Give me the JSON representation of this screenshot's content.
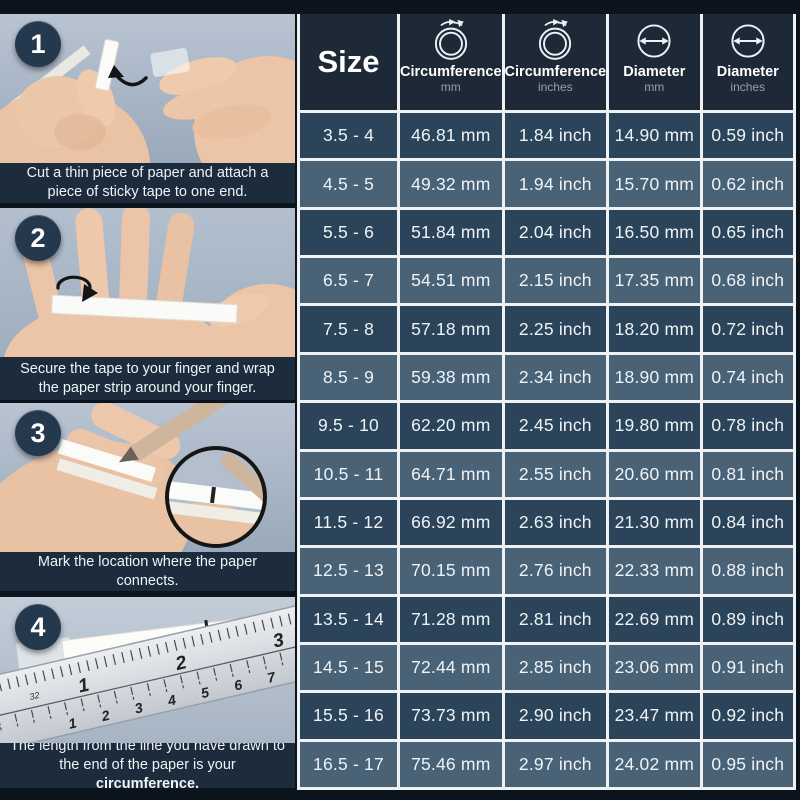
{
  "steps": [
    {
      "number": "1",
      "caption": "Cut a thin piece of paper and attach a piece of sticky tape to one end.",
      "caption_bold": ""
    },
    {
      "number": "2",
      "caption": "Secure the tape to your finger and wrap the paper strip around your finger.",
      "caption_bold": ""
    },
    {
      "number": "3",
      "caption": "Mark the location where the paper connects.",
      "caption_bold": ""
    },
    {
      "number": "4",
      "caption": "The length from the line you have drawn to the end of the paper is your ",
      "caption_bold": "circumference."
    }
  ],
  "table": {
    "size_header": "Size",
    "columns": [
      {
        "label": "Circumference",
        "unit": "mm",
        "icon": "circumference-icon"
      },
      {
        "label": "Circumference",
        "unit": "inches",
        "icon": "circumference-icon"
      },
      {
        "label": "Diameter",
        "unit": "mm",
        "icon": "diameter-icon"
      },
      {
        "label": "Diameter",
        "unit": "inches",
        "icon": "diameter-icon"
      }
    ],
    "rows": [
      {
        "size": "3.5 - 4",
        "circumference_mm": "46.81 mm",
        "circumference_in": "1.84 inch",
        "diameter_mm": "14.90 mm",
        "diameter_in": "0.59 inch"
      },
      {
        "size": "4.5 - 5",
        "circumference_mm": "49.32 mm",
        "circumference_in": "1.94 inch",
        "diameter_mm": "15.70 mm",
        "diameter_in": "0.62 inch"
      },
      {
        "size": "5.5 - 6",
        "circumference_mm": "51.84 mm",
        "circumference_in": "2.04 inch",
        "diameter_mm": "16.50 mm",
        "diameter_in": "0.65 inch"
      },
      {
        "size": "6.5 - 7",
        "circumference_mm": "54.51 mm",
        "circumference_in": "2.15 inch",
        "diameter_mm": "17.35 mm",
        "diameter_in": "0.68 inch"
      },
      {
        "size": "7.5 - 8",
        "circumference_mm": "57.18 mm",
        "circumference_in": "2.25 inch",
        "diameter_mm": "18.20 mm",
        "diameter_in": "0.72 inch"
      },
      {
        "size": "8.5 - 9",
        "circumference_mm": "59.38 mm",
        "circumference_in": "2.34 inch",
        "diameter_mm": "18.90 mm",
        "diameter_in": "0.74 inch"
      },
      {
        "size": "9.5 - 10",
        "circumference_mm": "62.20 mm",
        "circumference_in": "2.45 inch",
        "diameter_mm": "19.80 mm",
        "diameter_in": "0.78 inch"
      },
      {
        "size": "10.5 - 11",
        "circumference_mm": "64.71 mm",
        "circumference_in": "2.55 inch",
        "diameter_mm": "20.60 mm",
        "diameter_in": "0.81 inch"
      },
      {
        "size": "11.5 - 12",
        "circumference_mm": "66.92 mm",
        "circumference_in": "2.63 inch",
        "diameter_mm": "21.30 mm",
        "diameter_in": "0.84 inch"
      },
      {
        "size": "12.5 - 13",
        "circumference_mm": "70.15 mm",
        "circumference_in": "2.76 inch",
        "diameter_mm": "22.33 mm",
        "diameter_in": "0.88 inch"
      },
      {
        "size": "13.5 - 14",
        "circumference_mm": "71.28 mm",
        "circumference_in": "2.81 inch",
        "diameter_mm": "22.69 mm",
        "diameter_in": "0.89 inch"
      },
      {
        "size": "14.5 - 15",
        "circumference_mm": "72.44 mm",
        "circumference_in": "2.85 inch",
        "diameter_mm": "23.06 mm",
        "diameter_in": "0.91 inch"
      },
      {
        "size": "15.5 - 16",
        "circumference_mm": "73.73 mm",
        "circumference_in": "2.90 inch",
        "diameter_mm": "23.47 mm",
        "diameter_in": "0.92 inch"
      },
      {
        "size": "16.5 - 17",
        "circumference_mm": "75.46 mm",
        "circumference_in": "2.97 inch",
        "diameter_mm": "24.02 mm",
        "diameter_in": "0.95 inch"
      }
    ]
  },
  "colors": {
    "page_background": "#0b131d",
    "header_background": "#1e2937",
    "row_dark": "#2c4459",
    "row_light": "#4a6276",
    "caption_bar": "#1d2c3c",
    "grid_line": "#eff1f2",
    "photo_background": "#a9b6c6"
  }
}
